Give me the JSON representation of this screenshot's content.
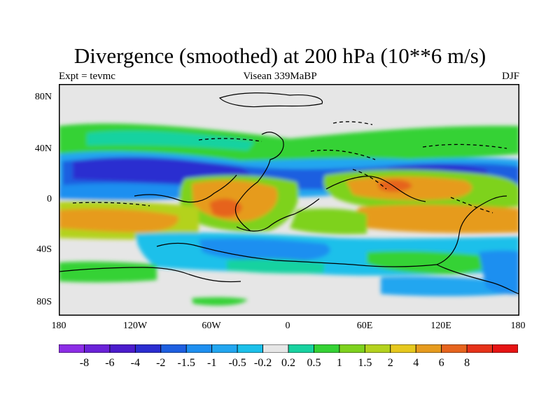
{
  "title": "Divergence (smoothed) at 200 hPa (10**6 m/s)",
  "left_subtitle": "Expt = tevmc",
  "center_subtitle": "Visean 339MaBP",
  "right_subtitle": "DJF",
  "lat_ticks": [
    {
      "label": "80N",
      "value": 80
    },
    {
      "label": "40N",
      "value": 40
    },
    {
      "label": "0",
      "value": 0
    },
    {
      "label": "40S",
      "value": -40
    },
    {
      "label": "80S",
      "value": -80
    }
  ],
  "lon_ticks": [
    {
      "label": "180",
      "value": -180
    },
    {
      "label": "120W",
      "value": -120
    },
    {
      "label": "60W",
      "value": -60
    },
    {
      "label": "0",
      "value": 0
    },
    {
      "label": "60E",
      "value": 60
    },
    {
      "label": "120E",
      "value": 120
    },
    {
      "label": "180",
      "value": 180
    }
  ],
  "colorbar": {
    "colors": [
      "#8c2de6",
      "#6a22d8",
      "#4b1ccc",
      "#2b2dd0",
      "#1e5fe0",
      "#1e8ff0",
      "#22a6f0",
      "#1cc0ea",
      "#e6e6e6",
      "#18d2a0",
      "#35d235",
      "#7ed21e",
      "#b4d21e",
      "#e6c81e",
      "#e69b1e",
      "#e6641e",
      "#e63219",
      "#e61414"
    ],
    "labels": [
      "-8",
      "-6",
      "-4",
      "-2",
      "-1.5",
      "-1",
      "-0.5",
      "-0.2",
      "0.2",
      "0.5",
      "1",
      "1.5",
      "2",
      "4",
      "6",
      "8"
    ]
  }
}
